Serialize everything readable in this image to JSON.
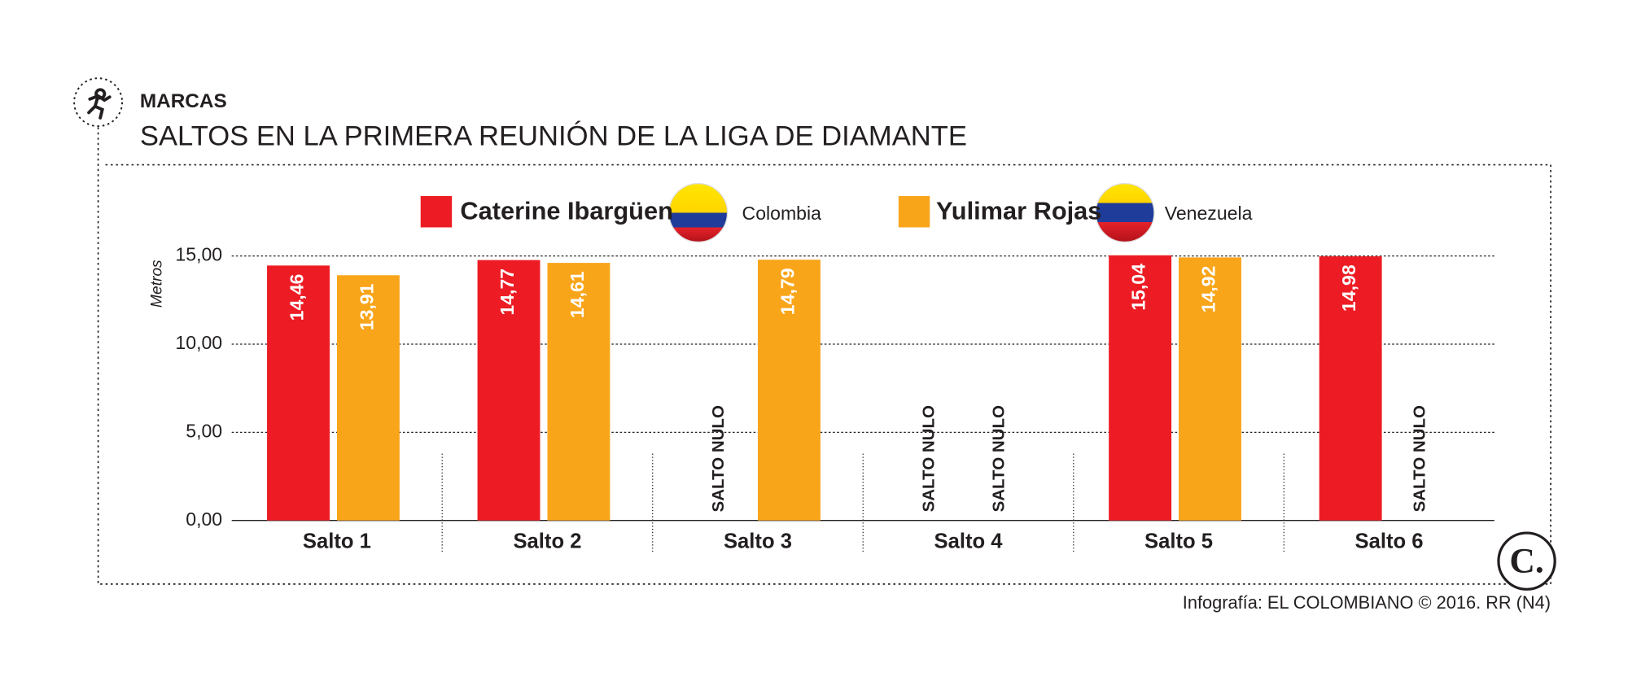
{
  "header": {
    "section": "MARCAS",
    "title": "SALTOS EN LA PRIMERA REUNIÓN DE LA LIGA DE DIAMANTE",
    "source": "Infografía: EL COLOMBIANO © 2016. RR (N4)",
    "logo": "C."
  },
  "chart_data": {
    "type": "bar",
    "y_label": "Metros",
    "categories": [
      "Salto 1",
      "Salto 2",
      "Salto 3",
      "Salto 4",
      "Salto 5",
      "Salto 6"
    ],
    "series": [
      {
        "name": "Caterine Ibargüen",
        "country": "Colombia",
        "color": "#ed1c24",
        "values": [
          14.46,
          14.77,
          null,
          null,
          15.04,
          14.98
        ],
        "value_labels": [
          "14,46",
          "14,77",
          "SALTO NULO",
          "SALTO NULO",
          "15,04",
          "14,98"
        ]
      },
      {
        "name": "Yulimar Rojas",
        "country": "Venezuela",
        "color": "#f9a51a",
        "values": [
          13.91,
          14.61,
          14.79,
          null,
          14.92,
          null
        ],
        "value_labels": [
          "13,91",
          "14,61",
          "14,79",
          "SALTO NULO",
          "14,92",
          "SALTO NULO"
        ]
      }
    ],
    "ylim": [
      0,
      15.5
    ],
    "yticks": [
      {
        "value": 0,
        "label": "0,00"
      },
      {
        "value": 5,
        "label": "5,00"
      },
      {
        "value": 10,
        "label": "10,00"
      },
      {
        "value": 15,
        "label": "15,00"
      }
    ],
    "grid": true
  }
}
